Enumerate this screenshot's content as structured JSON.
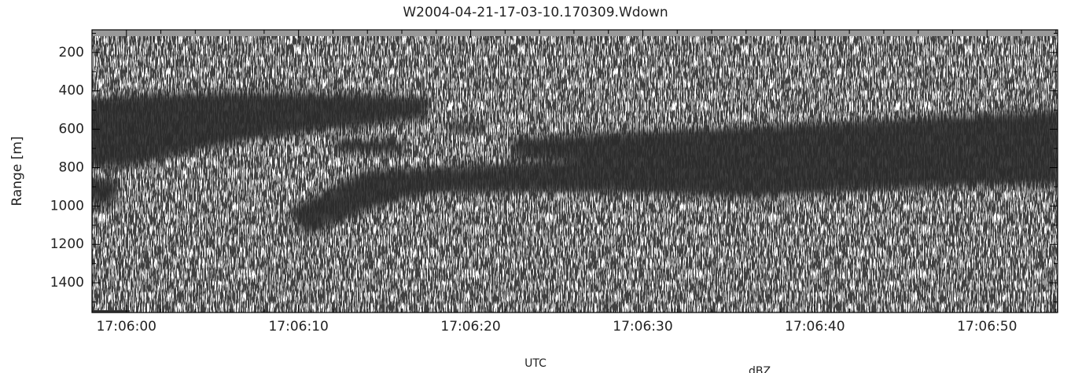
{
  "chart_data": {
    "type": "heatmap",
    "title": "W2004-04-21-17-03-10.170309.Wdown",
    "x_label": "UTC",
    "y_label": "Range [m]",
    "colorbar_label": "dBZ",
    "xlim": [
      61558.0,
      61614.1
    ],
    "xticks": [
      {
        "value": 61560,
        "label": "17:06:00"
      },
      {
        "value": 61570,
        "label": "17:06:10"
      },
      {
        "value": 61580,
        "label": "17:06:20"
      },
      {
        "value": 61590,
        "label": "17:06:30"
      },
      {
        "value": 61600,
        "label": "17:06:40"
      },
      {
        "value": 61610,
        "label": "17:06:50"
      }
    ],
    "ylim": [
      1555,
      82
    ],
    "yticks": [
      200,
      400,
      600,
      800,
      1000,
      1200,
      1400
    ]
  }
}
